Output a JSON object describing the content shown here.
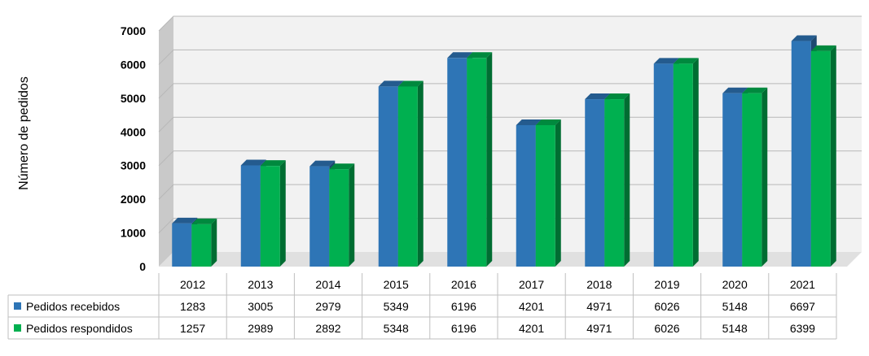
{
  "chart_data": {
    "type": "bar",
    "title": "",
    "xlabel": "",
    "ylabel": "Número de pedidos",
    "ylim": [
      0,
      7000
    ],
    "yticks": [
      0,
      1000,
      2000,
      3000,
      4000,
      5000,
      6000,
      7000
    ],
    "categories": [
      "2012",
      "2013",
      "2014",
      "2015",
      "2016",
      "2017",
      "2018",
      "2019",
      "2020",
      "2021"
    ],
    "series": [
      {
        "name": "Pedidos recebidos",
        "color": "#2e75b6",
        "values": [
          1283,
          3005,
          2979,
          5349,
          6196,
          4201,
          4971,
          6026,
          5148,
          6697
        ]
      },
      {
        "name": "Pedidos respondidos",
        "color": "#00b050",
        "values": [
          1257,
          2989,
          2892,
          5348,
          6196,
          4201,
          4971,
          6026,
          5148,
          6399
        ]
      }
    ],
    "grid": true,
    "style": "3d-clustered-column",
    "legend": "data-table"
  }
}
